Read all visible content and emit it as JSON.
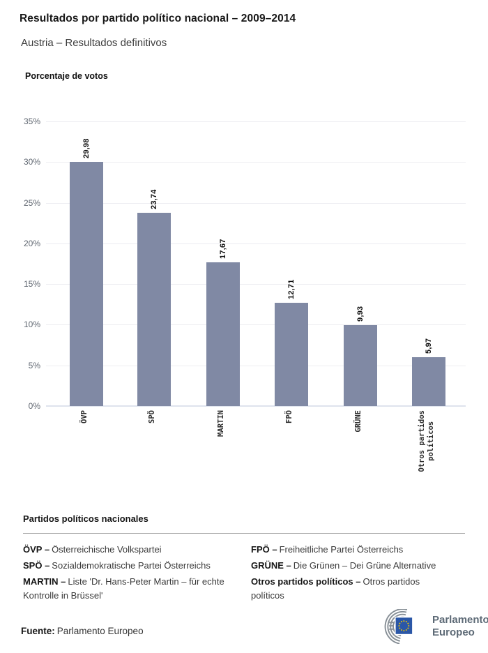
{
  "header": {
    "title": "Resultados por partido político nacional – 2009–2014",
    "subtitle": "Austria – Resultados definitivos"
  },
  "chart_data": {
    "type": "bar",
    "title": "Porcentaje de votos",
    "categories": [
      "ÖVP",
      "SPÖ",
      "MARTIN",
      "FPÖ",
      "GRÜNE",
      "Otros partidos\npolíticos"
    ],
    "values": [
      29.98,
      23.74,
      17.67,
      12.71,
      9.93,
      5.97
    ],
    "value_labels": [
      "29,98",
      "23,74",
      "17,67",
      "12,71",
      "9,93",
      "5,97"
    ],
    "ytick_labels": [
      "0%",
      "5%",
      "10%",
      "15%",
      "20%",
      "25%",
      "30%",
      "35%"
    ],
    "ylim": [
      0,
      35
    ],
    "grid": true,
    "bar_color": "#8089a4"
  },
  "legend": {
    "title": "Partidos políticos nacionales",
    "items": [
      {
        "term": "ÖVP –",
        "definition": "Österreichische Volkspartei"
      },
      {
        "term": "SPÖ –",
        "definition": "Sozialdemokratische Partei Österreichs"
      },
      {
        "term": "MARTIN –",
        "definition": "Liste 'Dr. Hans-Peter Martin – für echte Kontrolle in Brüssel'"
      },
      {
        "term": "FPÖ –",
        "definition": "Freiheitliche Partei Österreichs"
      },
      {
        "term": "GRÜNE –",
        "definition": "Die Grünen – Dei Grüne Alternative"
      },
      {
        "term": "Otros partidos políticos –",
        "definition": "Otros partidos políticos"
      }
    ]
  },
  "footer": {
    "source_label": "Fuente:",
    "source_value": "Parlamento Europeo",
    "logo_text_line1": "Parlamento",
    "logo_text_line2": "Europeo"
  }
}
